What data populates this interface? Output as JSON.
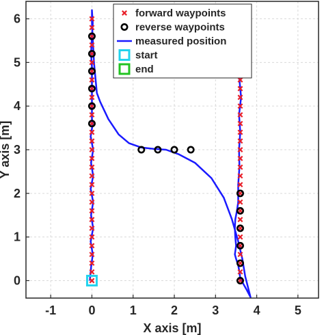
{
  "chart_data": {
    "type": "scatter",
    "xlabel": "X axis [m]",
    "ylabel": "Y axis [m]",
    "xlim": [
      -1.6,
      5.5
    ],
    "ylim": [
      -0.4,
      6.4
    ],
    "xticks": [
      "-1",
      "0",
      "1",
      "2",
      "3",
      "4",
      "5"
    ],
    "yticks": [
      "0",
      "1",
      "2",
      "3",
      "4",
      "5",
      "6"
    ],
    "grid": true,
    "legend_position": "top-right",
    "series": [
      {
        "name": "forward waypoints",
        "marker": "x",
        "color": "#e8202a",
        "points": [
          [
            0,
            0
          ],
          [
            0,
            0.2
          ],
          [
            0,
            0.4
          ],
          [
            0,
            0.6
          ],
          [
            0,
            0.8
          ],
          [
            0,
            1.0
          ],
          [
            0,
            1.2
          ],
          [
            0,
            1.4
          ],
          [
            0,
            1.6
          ],
          [
            0,
            1.8
          ],
          [
            0,
            2.0
          ],
          [
            0,
            2.2
          ],
          [
            0,
            2.4
          ],
          [
            0,
            2.6
          ],
          [
            0,
            2.8
          ],
          [
            0,
            3.0
          ],
          [
            0,
            3.2
          ],
          [
            0,
            3.4
          ],
          [
            0,
            3.6
          ],
          [
            0,
            3.8
          ],
          [
            0,
            4.0
          ],
          [
            0,
            4.2
          ],
          [
            0,
            4.4
          ],
          [
            0,
            4.6
          ],
          [
            0,
            4.8
          ],
          [
            0,
            5.0
          ],
          [
            0,
            5.2
          ],
          [
            0,
            5.4
          ],
          [
            0,
            5.6
          ],
          [
            0,
            5.8
          ],
          [
            0,
            6.0
          ],
          [
            3.6,
            0
          ],
          [
            3.6,
            0.2
          ],
          [
            3.6,
            0.4
          ],
          [
            3.6,
            0.6
          ],
          [
            3.6,
            0.8
          ],
          [
            3.6,
            1.0
          ],
          [
            3.6,
            1.2
          ],
          [
            3.6,
            1.4
          ],
          [
            3.6,
            1.6
          ],
          [
            3.6,
            1.8
          ],
          [
            3.6,
            2.0
          ],
          [
            3.6,
            2.2
          ],
          [
            3.6,
            2.4
          ],
          [
            3.6,
            2.6
          ],
          [
            3.6,
            2.8
          ],
          [
            3.6,
            3.0
          ],
          [
            3.6,
            3.2
          ],
          [
            3.6,
            3.4
          ],
          [
            3.6,
            3.6
          ],
          [
            3.6,
            3.8
          ],
          [
            3.6,
            4.0
          ],
          [
            3.6,
            4.2
          ],
          [
            3.6,
            4.4
          ],
          [
            3.6,
            4.6
          ],
          [
            3.6,
            4.8
          ],
          [
            3.6,
            5.0
          ],
          [
            3.6,
            5.2
          ],
          [
            3.6,
            5.4
          ],
          [
            3.6,
            5.6
          ],
          [
            3.6,
            5.8
          ],
          [
            3.6,
            6.0
          ]
        ]
      },
      {
        "name": "reverse waypoints",
        "marker": "o",
        "color": "#000000",
        "points": [
          [
            0,
            5.6
          ],
          [
            0,
            5.2
          ],
          [
            0,
            4.8
          ],
          [
            0,
            4.4
          ],
          [
            0,
            4.0
          ],
          [
            0,
            3.6
          ],
          [
            1.2,
            3.0
          ],
          [
            1.6,
            3.0
          ],
          [
            2.0,
            3.0
          ],
          [
            2.4,
            3.0
          ],
          [
            3.6,
            2.0
          ],
          [
            3.6,
            1.6
          ],
          [
            3.6,
            1.2
          ],
          [
            3.6,
            0.8
          ],
          [
            3.6,
            0.4
          ],
          [
            3.6,
            0.0
          ]
        ]
      },
      {
        "name": "measured position",
        "marker": "line",
        "color": "#1a1aff",
        "points": [
          [
            -0.05,
            0.0
          ],
          [
            -0.02,
            0.3
          ],
          [
            0.02,
            0.6
          ],
          [
            -0.03,
            0.9
          ],
          [
            0.03,
            1.2
          ],
          [
            -0.02,
            1.5
          ],
          [
            0.03,
            1.8
          ],
          [
            -0.03,
            2.1
          ],
          [
            0.03,
            2.4
          ],
          [
            -0.02,
            2.7
          ],
          [
            0.03,
            3.0
          ],
          [
            -0.03,
            3.3
          ],
          [
            0.02,
            3.6
          ],
          [
            0.0,
            3.7
          ],
          [
            0.0,
            4.0
          ],
          [
            0.0,
            4.3
          ],
          [
            0.0,
            4.6
          ],
          [
            0.0,
            4.9
          ],
          [
            -0.02,
            5.2
          ],
          [
            0.0,
            5.6
          ],
          [
            0.02,
            5.9
          ],
          [
            0.0,
            6.2
          ],
          [
            0.0,
            5.9
          ],
          [
            0.05,
            5.0
          ],
          [
            0.12,
            4.3
          ],
          [
            0.2,
            4.1
          ],
          [
            0.4,
            3.7
          ],
          [
            0.65,
            3.35
          ],
          [
            0.9,
            3.15
          ],
          [
            1.2,
            3.05
          ],
          [
            1.5,
            3.02
          ],
          [
            1.8,
            3.0
          ],
          [
            2.1,
            2.9
          ],
          [
            2.5,
            2.7
          ],
          [
            2.9,
            2.35
          ],
          [
            3.2,
            1.9
          ],
          [
            3.4,
            1.4
          ],
          [
            3.55,
            0.9
          ],
          [
            3.65,
            0.5
          ],
          [
            3.72,
            0.1
          ],
          [
            3.85,
            -0.38
          ],
          [
            3.85,
            -0.38
          ],
          [
            3.75,
            -0.2
          ],
          [
            3.6,
            0.05
          ],
          [
            3.58,
            0.2
          ],
          [
            3.55,
            0.35
          ],
          [
            3.5,
            0.5
          ],
          [
            3.47,
            0.6
          ],
          [
            3.5,
            0.8
          ],
          [
            3.48,
            1.0
          ],
          [
            3.47,
            1.2
          ],
          [
            3.48,
            1.4
          ],
          [
            3.52,
            1.6
          ],
          [
            3.55,
            1.8
          ],
          [
            3.55,
            2.2
          ],
          [
            3.58,
            2.6
          ],
          [
            3.57,
            3.0
          ],
          [
            3.6,
            3.4
          ],
          [
            3.57,
            3.8
          ],
          [
            3.62,
            4.2
          ],
          [
            3.58,
            4.6
          ],
          [
            3.62,
            5.0
          ],
          [
            3.58,
            5.4
          ],
          [
            3.62,
            5.8
          ],
          [
            3.6,
            6.0
          ]
        ]
      },
      {
        "name": "start",
        "marker": "square",
        "color": "#22d3ee",
        "points": [
          [
            0,
            0
          ]
        ]
      },
      {
        "name": "end",
        "marker": "square",
        "color": "#22c322",
        "points": [
          [
            3.6,
            6.0
          ]
        ]
      }
    ]
  }
}
